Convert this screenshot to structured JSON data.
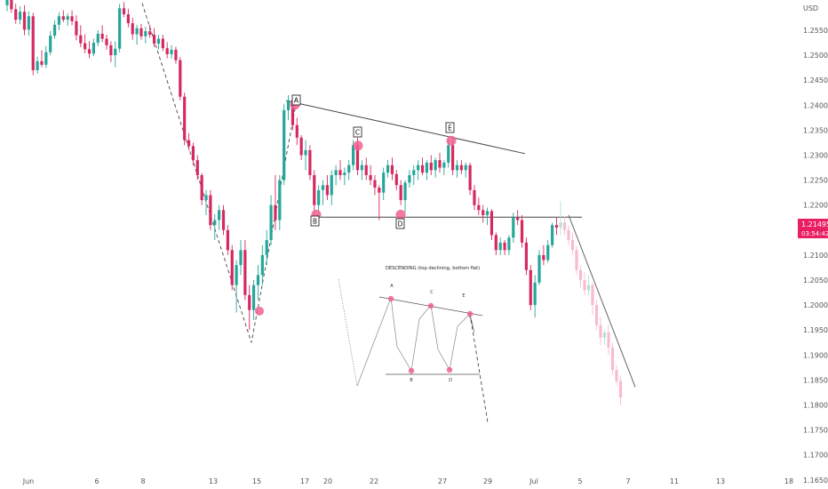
{
  "chart_data": {
    "type": "candlestick",
    "instrument_currency": "USD",
    "y_ticks": [
      "1.25500",
      "1.25000",
      "1.24500",
      "1.24000",
      "1.23500",
      "1.23000",
      "1.22500",
      "1.22000",
      "1.21500",
      "1.21000",
      "1.20500",
      "1.20000",
      "1.19500",
      "1.19000",
      "1.18500",
      "1.18000",
      "1.17500",
      "1.17000",
      "1.16500"
    ],
    "ylim": [
      1.164,
      1.259
    ],
    "x_ticks": [
      "Jun",
      "6",
      "8",
      "13",
      "15",
      "17",
      "20",
      "22",
      "27",
      "29",
      "Jul",
      "5",
      "7",
      "11",
      "13",
      "18"
    ],
    "current_price": "1.21495",
    "countdown": "03:54:42",
    "colors": {
      "up": "#26a69a",
      "down": "#d5295f",
      "up_projection": "#b2dfdb",
      "down_projection": "#f8bbd0",
      "pattern_point": "#f06292",
      "price_box": "#e91e63",
      "grid": "#ffffff"
    },
    "pattern_points": [
      {
        "label": "A",
        "price": 1.2401
      },
      {
        "label": "B",
        "price": 1.2181
      },
      {
        "label": "C",
        "price": 1.2319
      },
      {
        "label": "D",
        "price": 1.2181
      },
      {
        "label": "E",
        "price": 1.2329
      }
    ],
    "resistance_line": {
      "start_price": 1.2409,
      "end_price": 1.2303
    },
    "support_line": {
      "price": 1.2176
    },
    "zigzag_prices": [
      1.2604,
      1.1925,
      1.2401
    ],
    "projection_line": {
      "start_price": 1.218,
      "end_price": 1.1836
    },
    "candles": [
      [
        1.26,
        1.2628,
        1.2588,
        1.2611
      ],
      [
        1.2611,
        1.2621,
        1.2585,
        1.2592
      ],
      [
        1.2592,
        1.2603,
        1.2563,
        1.2571
      ],
      [
        1.2571,
        1.2598,
        1.2562,
        1.2587
      ],
      [
        1.2587,
        1.26,
        1.254,
        1.2551
      ],
      [
        1.2551,
        1.2588,
        1.2539,
        1.2578
      ],
      [
        1.2578,
        1.2585,
        1.246,
        1.247
      ],
      [
        1.247,
        1.2497,
        1.2463,
        1.2488
      ],
      [
        1.2488,
        1.251,
        1.2476,
        1.2481
      ],
      [
        1.2481,
        1.2518,
        1.2474,
        1.2506
      ],
      [
        1.2506,
        1.2548,
        1.25,
        1.2539
      ],
      [
        1.2539,
        1.257,
        1.2533,
        1.2561
      ],
      [
        1.2561,
        1.2586,
        1.255,
        1.2578
      ],
      [
        1.2578,
        1.259,
        1.2566,
        1.2571
      ],
      [
        1.2571,
        1.2584,
        1.2559,
        1.2578
      ],
      [
        1.2578,
        1.259,
        1.256,
        1.2568
      ],
      [
        1.2568,
        1.258,
        1.253,
        1.254
      ],
      [
        1.254,
        1.256,
        1.2516,
        1.2524
      ],
      [
        1.2524,
        1.2542,
        1.2504,
        1.2512
      ],
      [
        1.2512,
        1.2528,
        1.2494,
        1.2503
      ],
      [
        1.2503,
        1.2533,
        1.2498,
        1.2525
      ],
      [
        1.2525,
        1.255,
        1.2518,
        1.2543
      ],
      [
        1.2543,
        1.256,
        1.2526,
        1.2533
      ],
      [
        1.2533,
        1.2541,
        1.2511,
        1.252
      ],
      [
        1.252,
        1.2528,
        1.2486,
        1.25
      ],
      [
        1.25,
        1.2528,
        1.2476,
        1.2513
      ],
      [
        1.2513,
        1.2603,
        1.2506,
        1.2594
      ],
      [
        1.2594,
        1.2606,
        1.2576,
        1.2582
      ],
      [
        1.2582,
        1.2593,
        1.2556,
        1.2564
      ],
      [
        1.2564,
        1.2575,
        1.2531,
        1.2542
      ],
      [
        1.2542,
        1.2561,
        1.2521,
        1.2554
      ],
      [
        1.2554,
        1.2563,
        1.2531,
        1.2538
      ],
      [
        1.2538,
        1.2557,
        1.2524,
        1.2548
      ],
      [
        1.2548,
        1.2561,
        1.2535,
        1.2541
      ],
      [
        1.2541,
        1.2554,
        1.2516,
        1.2523
      ],
      [
        1.2523,
        1.2541,
        1.2511,
        1.2533
      ],
      [
        1.2533,
        1.2541,
        1.2508,
        1.2514
      ],
      [
        1.2514,
        1.2526,
        1.2494,
        1.2502
      ],
      [
        1.2502,
        1.252,
        1.2493,
        1.2511
      ],
      [
        1.2511,
        1.2517,
        1.2483,
        1.249
      ],
      [
        1.249,
        1.2496,
        1.241,
        1.2417
      ],
      [
        1.2417,
        1.2425,
        1.232,
        1.233
      ],
      [
        1.233,
        1.2344,
        1.231,
        1.2318
      ],
      [
        1.2318,
        1.2325,
        1.228,
        1.229
      ],
      [
        1.229,
        1.23,
        1.225,
        1.226
      ],
      [
        1.226,
        1.2264,
        1.22,
        1.221
      ],
      [
        1.221,
        1.223,
        1.218,
        1.222
      ],
      [
        1.222,
        1.223,
        1.215,
        1.216
      ],
      [
        1.216,
        1.2182,
        1.213,
        1.217
      ],
      [
        1.217,
        1.22,
        1.215,
        1.219
      ],
      [
        1.219,
        1.22,
        1.214,
        1.215
      ],
      [
        1.215,
        1.216,
        1.21,
        1.211
      ],
      [
        1.211,
        1.212,
        1.203,
        1.204
      ],
      [
        1.204,
        1.209,
        1.1985,
        1.208
      ],
      [
        1.208,
        1.213,
        1.206,
        1.211
      ],
      [
        1.211,
        1.213,
        1.201,
        1.202
      ],
      [
        1.202,
        1.204,
        1.195,
        1.199
      ],
      [
        1.199,
        1.205,
        1.197,
        1.204
      ],
      [
        1.204,
        1.208,
        1.201,
        1.206
      ],
      [
        1.206,
        1.212,
        1.204,
        1.21
      ],
      [
        1.21,
        1.215,
        1.208,
        1.213
      ],
      [
        1.213,
        1.222,
        1.212,
        1.22
      ],
      [
        1.22,
        1.226,
        1.215,
        1.217
      ],
      [
        1.217,
        1.226,
        1.215,
        1.225
      ],
      [
        1.225,
        1.2402,
        1.224,
        1.239
      ],
      [
        1.239,
        1.242,
        1.237,
        1.241
      ],
      [
        1.241,
        1.2415,
        1.235,
        1.236
      ],
      [
        1.236,
        1.2375,
        1.232,
        1.2335
      ],
      [
        1.2335,
        1.234,
        1.229,
        1.23
      ],
      [
        1.23,
        1.233,
        1.227,
        1.231
      ],
      [
        1.231,
        1.232,
        1.225,
        1.226
      ],
      [
        1.226,
        1.227,
        1.218,
        1.22
      ],
      [
        1.22,
        1.224,
        1.218,
        1.223
      ],
      [
        1.223,
        1.225,
        1.22,
        1.224
      ],
      [
        1.224,
        1.226,
        1.221,
        1.222
      ],
      [
        1.222,
        1.227,
        1.22,
        1.226
      ],
      [
        1.226,
        1.228,
        1.224,
        1.227
      ],
      [
        1.227,
        1.229,
        1.225,
        1.226
      ],
      [
        1.226,
        1.2275,
        1.224,
        1.2265
      ],
      [
        1.2265,
        1.229,
        1.225,
        1.228
      ],
      [
        1.228,
        1.233,
        1.227,
        1.232
      ],
      [
        1.232,
        1.2335,
        1.226,
        1.227
      ],
      [
        1.227,
        1.229,
        1.225,
        1.228
      ],
      [
        1.228,
        1.2295,
        1.225,
        1.226
      ],
      [
        1.226,
        1.228,
        1.224,
        1.225
      ],
      [
        1.225,
        1.226,
        1.222,
        1.2235
      ],
      [
        1.2235,
        1.224,
        1.217,
        1.2225
      ],
      [
        1.2225,
        1.2275,
        1.221,
        1.2265
      ],
      [
        1.2265,
        1.229,
        1.2255,
        1.228
      ],
      [
        1.228,
        1.2295,
        1.225,
        1.2262
      ],
      [
        1.2262,
        1.227,
        1.223,
        1.224
      ],
      [
        1.224,
        1.225,
        1.22,
        1.221
      ],
      [
        1.221,
        1.225,
        1.2185,
        1.2245
      ],
      [
        1.2245,
        1.227,
        1.2235,
        1.226
      ],
      [
        1.226,
        1.228,
        1.224,
        1.227
      ],
      [
        1.227,
        1.229,
        1.225,
        1.228
      ],
      [
        1.228,
        1.2295,
        1.226,
        1.2265
      ],
      [
        1.2265,
        1.229,
        1.225,
        1.2285
      ],
      [
        1.2285,
        1.23,
        1.226,
        1.227
      ],
      [
        1.227,
        1.2295,
        1.2255,
        1.229
      ],
      [
        1.229,
        1.2305,
        1.2265,
        1.2275
      ],
      [
        1.2275,
        1.229,
        1.226,
        1.2285
      ],
      [
        1.2285,
        1.2332,
        1.2275,
        1.232
      ],
      [
        1.232,
        1.2335,
        1.226,
        1.227
      ],
      [
        1.227,
        1.229,
        1.2255,
        1.228
      ],
      [
        1.228,
        1.229,
        1.2262,
        1.227
      ],
      [
        1.227,
        1.2285,
        1.2255,
        1.228
      ],
      [
        1.228,
        1.2285,
        1.222,
        1.223
      ],
      [
        1.223,
        1.224,
        1.219,
        1.22
      ],
      [
        1.22,
        1.2215,
        1.218,
        1.219
      ],
      [
        1.219,
        1.22,
        1.2165,
        1.218
      ],
      [
        1.218,
        1.2195,
        1.216,
        1.2188
      ],
      [
        1.2188,
        1.2192,
        1.213,
        1.214
      ],
      [
        1.214,
        1.2145,
        1.21,
        1.211
      ],
      [
        1.211,
        1.2135,
        1.21,
        1.2125
      ],
      [
        1.2125,
        1.213,
        1.21,
        1.211
      ],
      [
        1.211,
        1.214,
        1.21,
        1.2135
      ],
      [
        1.2135,
        1.2185,
        1.2125,
        1.2175
      ],
      [
        1.2175,
        1.219,
        1.216,
        1.217
      ],
      [
        1.217,
        1.218,
        1.2115,
        1.2125
      ],
      [
        1.2125,
        1.2135,
        1.206,
        1.207
      ],
      [
        1.207,
        1.208,
        1.199,
        1.2
      ],
      [
        1.2,
        1.206,
        1.1975,
        1.2045
      ],
      [
        1.2045,
        1.211,
        1.204,
        1.21
      ],
      [
        1.21,
        1.212,
        1.208,
        1.209
      ],
      [
        1.209,
        1.213,
        1.2085,
        1.212
      ],
      [
        1.212,
        1.2165,
        1.2115,
        1.216
      ],
      [
        1.216,
        1.2175,
        1.214,
        1.2155
      ]
    ],
    "projection_candles": [
      [
        1.2155,
        1.2208,
        1.214,
        1.2165
      ],
      [
        1.2165,
        1.2178,
        1.214,
        1.215
      ],
      [
        1.215,
        1.216,
        1.212,
        1.213
      ],
      [
        1.213,
        1.2145,
        1.21,
        1.211
      ],
      [
        1.211,
        1.2118,
        1.206,
        1.207
      ],
      [
        1.207,
        1.208,
        1.2035,
        1.205
      ],
      [
        1.205,
        1.2065,
        1.202,
        1.203
      ],
      [
        1.203,
        1.206,
        1.202,
        1.204
      ],
      [
        1.204,
        1.2045,
        1.198,
        1.2
      ],
      [
        1.2,
        1.201,
        1.195,
        1.196
      ],
      [
        1.196,
        1.1975,
        1.192,
        1.1935
      ],
      [
        1.1935,
        1.195,
        1.192,
        1.1945
      ],
      [
        1.1945,
        1.196,
        1.19,
        1.1915
      ],
      [
        1.1915,
        1.1925,
        1.186,
        1.187
      ],
      [
        1.187,
        1.188,
        1.184,
        1.1848
      ],
      [
        1.1848,
        1.186,
        1.18,
        1.1815
      ]
    ],
    "inset_diagram": {
      "title": "DESCENDING (top declining, bottom flat)",
      "labels": [
        "A",
        "B",
        "C",
        "D",
        "E"
      ]
    }
  }
}
